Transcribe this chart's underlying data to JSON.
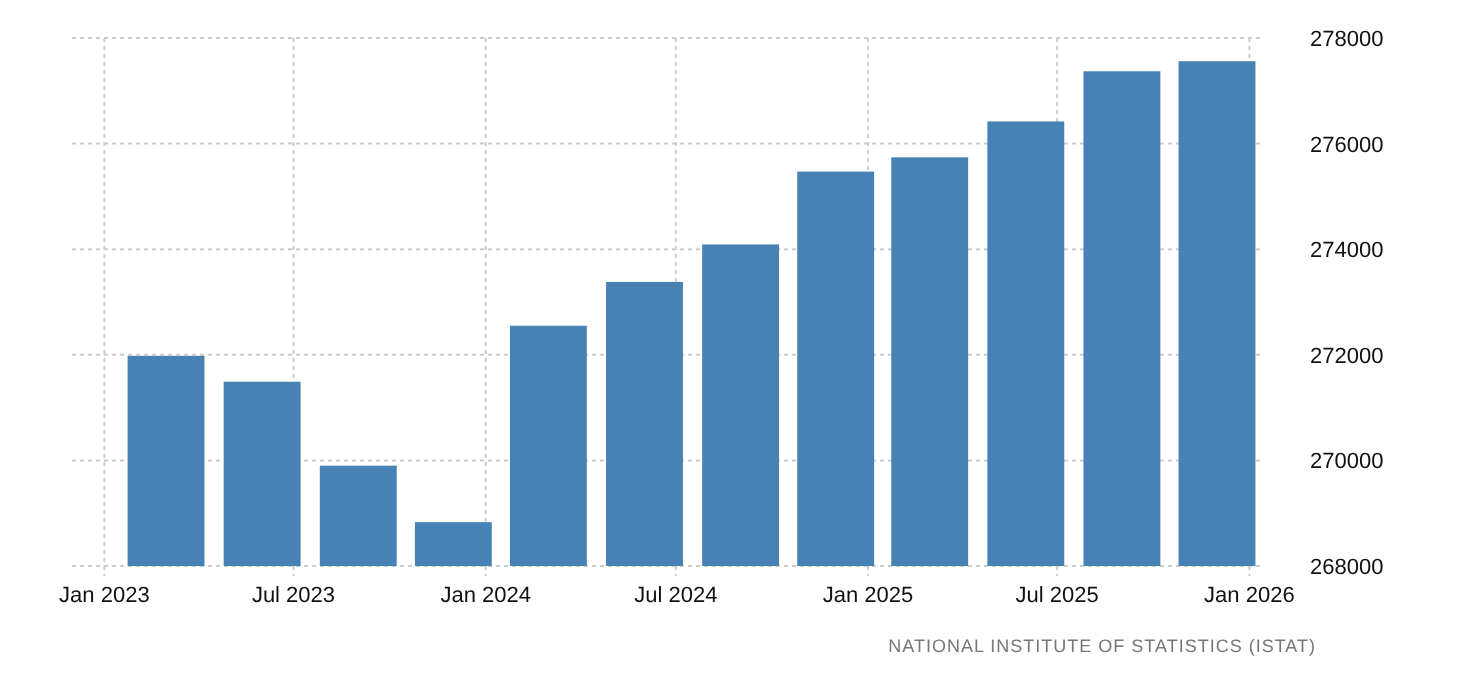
{
  "chart_data": {
    "type": "bar",
    "x": [
      "2023-03-01",
      "2023-06-01",
      "2023-09-01",
      "2023-12-01",
      "2024-03-01",
      "2024-06-01",
      "2024-09-01",
      "2024-12-01",
      "2025-03-01",
      "2025-06-01",
      "2025-09-01",
      "2025-12-01"
    ],
    "values": [
      271980,
      271490,
      269900,
      268830,
      272550,
      273380,
      274090,
      275470,
      275740,
      276420,
      277370,
      277560
    ],
    "color": "#4682b4",
    "xlim": [
      "2022-12-01",
      "2026-01-15"
    ],
    "xticks": [
      {
        "value": "2023-01-01",
        "label": "Jan 2023"
      },
      {
        "value": "2023-07-01",
        "label": "Jul 2023"
      },
      {
        "value": "2024-01-01",
        "label": "Jan 2024"
      },
      {
        "value": "2024-07-01",
        "label": "Jul 2024"
      },
      {
        "value": "2025-01-01",
        "label": "Jan 2025"
      },
      {
        "value": "2025-07-01",
        "label": "Jul 2025"
      },
      {
        "value": "2026-01-01",
        "label": "Jan 2026"
      }
    ],
    "ylim": [
      268000,
      278000
    ],
    "yticks": [
      268000,
      270000,
      272000,
      274000,
      276000,
      278000
    ],
    "grid": true,
    "annotations": [
      "NATIONAL INSTITUTE OF STATISTICS (ISTAT)"
    ]
  }
}
